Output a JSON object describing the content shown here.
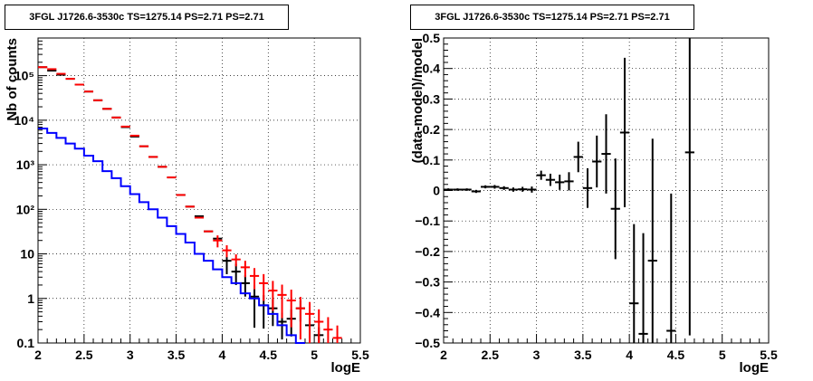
{
  "chart_data": [
    {
      "type": "line",
      "panel": "counts",
      "title": "3FGL J1726.6-3530c TS=1275.14 PS=2.71 PS=2.71",
      "xlabel": "logE",
      "ylabel": "Nb of counts",
      "xlim": [
        2,
        5.5
      ],
      "ylim": [
        0.1,
        700000
      ],
      "yscale": "log",
      "grid": true,
      "x_ticks": [
        "2",
        "2.5",
        "3",
        "3.5",
        "4",
        "4.5",
        "5",
        "5.5"
      ],
      "y_ticks": [
        "0.1",
        "1",
        "10",
        "10²",
        "10³",
        "10⁴",
        "10⁵"
      ],
      "series": [
        {
          "kind": "data-points",
          "color": "#000000",
          "x": [
            2.05,
            2.15,
            2.25,
            2.35,
            2.45,
            2.55,
            2.65,
            2.75,
            2.85,
            2.95,
            3.05,
            3.15,
            3.25,
            3.35,
            3.45,
            3.55,
            3.65,
            3.75,
            3.85,
            3.95,
            4.05,
            4.15,
            4.25,
            4.35,
            4.45,
            4.55,
            4.65,
            4.75,
            4.85,
            4.95,
            5.05
          ],
          "y": [
            155000,
            130000,
            105000,
            85000,
            63000,
            44000,
            28000,
            18000,
            11500,
            7000,
            4300,
            2600,
            1500,
            900,
            520,
            210,
            115,
            70,
            32,
            22,
            7,
            4,
            2.2,
            1.1,
            0.7,
            0.6,
            0.3,
            0.35,
            0.6,
            0.25,
            0.15
          ],
          "yerr": [
            0,
            0,
            0,
            0,
            0,
            0,
            0,
            0,
            0,
            0,
            0,
            0,
            0,
            0,
            0,
            0,
            0,
            0,
            0,
            0,
            0.5,
            0.5,
            0.5,
            0.8,
            0.7,
            0.6,
            0.6,
            0.6,
            0.5,
            0.5,
            0.5
          ]
        },
        {
          "kind": "model-total",
          "color": "#ff0000",
          "x": [
            2.05,
            2.15,
            2.25,
            2.35,
            2.45,
            2.55,
            2.65,
            2.75,
            2.85,
            2.95,
            3.05,
            3.15,
            3.25,
            3.35,
            3.45,
            3.55,
            3.65,
            3.75,
            3.85,
            3.95,
            4.05,
            4.15,
            4.25,
            4.35,
            4.45,
            4.55,
            4.65,
            4.75,
            4.85,
            4.95,
            5.05,
            5.15,
            5.25
          ],
          "y": [
            155000,
            140000,
            110000,
            85000,
            63000,
            44000,
            28000,
            18000,
            11500,
            7200,
            4500,
            2600,
            1500,
            900,
            520,
            210,
            115,
            65,
            32,
            20,
            12,
            7.5,
            5,
            3.2,
            2.2,
            1.5,
            1.2,
            0.9,
            0.6,
            0.45,
            0.3,
            0.2,
            0.13
          ],
          "yerr": [
            0,
            0,
            0,
            0,
            0,
            0,
            0,
            0,
            0,
            0,
            0,
            0,
            0,
            0,
            0,
            0,
            0,
            0,
            0,
            0.3,
            0.3,
            0.3,
            0.4,
            0.5,
            0.6,
            0.65,
            0.7,
            0.75,
            0.8,
            0.85,
            0.9,
            0.9,
            0.9
          ]
        },
        {
          "kind": "model-source",
          "color": "#0000ff",
          "edges": [
            2.0,
            2.1,
            2.2,
            2.3,
            2.4,
            2.5,
            2.6,
            2.7,
            2.8,
            2.9,
            3.0,
            3.1,
            3.2,
            3.3,
            3.4,
            3.5,
            3.6,
            3.7,
            3.8,
            3.9,
            4.0,
            4.1,
            4.2,
            4.3,
            4.4,
            4.5,
            4.6,
            4.7,
            4.8,
            4.9
          ],
          "values": [
            6500,
            5200,
            4000,
            3000,
            2300,
            1600,
            1200,
            720,
            500,
            330,
            220,
            145,
            100,
            65,
            42,
            28,
            18,
            10,
            7,
            4.5,
            3,
            2.2,
            1.3,
            1.0,
            0.7,
            0.45,
            0.25,
            0.15,
            0.1
          ]
        }
      ]
    },
    {
      "type": "scatter",
      "panel": "residuals",
      "title": "3FGL J1726.6-3530c TS=1275.14 PS=2.71 PS=2.71",
      "xlabel": "logE",
      "ylabel": "(data-model)/model",
      "xlim": [
        2,
        5.5
      ],
      "ylim": [
        -0.5,
        0.5
      ],
      "grid": true,
      "x_ticks": [
        "2",
        "2.5",
        "3",
        "3.5",
        "4",
        "4.5",
        "5",
        "5.5"
      ],
      "y_ticks": [
        "−0.5",
        "−0.4",
        "−0.3",
        "−0.2",
        "−0.1",
        "0",
        "0.1",
        "0.2",
        "0.3",
        "0.4",
        "0.5"
      ],
      "series": [
        {
          "kind": "residual-points",
          "color": "#000000",
          "x": [
            2.05,
            2.15,
            2.25,
            2.35,
            2.45,
            2.55,
            2.65,
            2.75,
            2.85,
            2.95,
            3.05,
            3.15,
            3.25,
            3.35,
            3.45,
            3.55,
            3.65,
            3.75,
            3.85,
            3.95,
            4.05,
            4.15,
            4.25,
            4.45,
            4.65
          ],
          "y": [
            0.003,
            0.003,
            0.003,
            -0.003,
            0.012,
            0.012,
            0.008,
            0.003,
            0.004,
            0.003,
            0.05,
            0.035,
            0.027,
            0.03,
            0.11,
            0.008,
            0.095,
            0.12,
            -0.06,
            0.19,
            -0.37,
            -0.47,
            -0.23,
            -0.46,
            0.125
          ],
          "yerr": [
            0.004,
            0.004,
            0.004,
            0.005,
            0.005,
            0.006,
            0.006,
            0.007,
            0.008,
            0.01,
            0.015,
            0.02,
            0.025,
            0.03,
            0.05,
            0.065,
            0.085,
            0.13,
            0.165,
            0.245,
            0.26,
            0.33,
            0.4,
            0.45,
            0.6
          ]
        }
      ]
    }
  ]
}
